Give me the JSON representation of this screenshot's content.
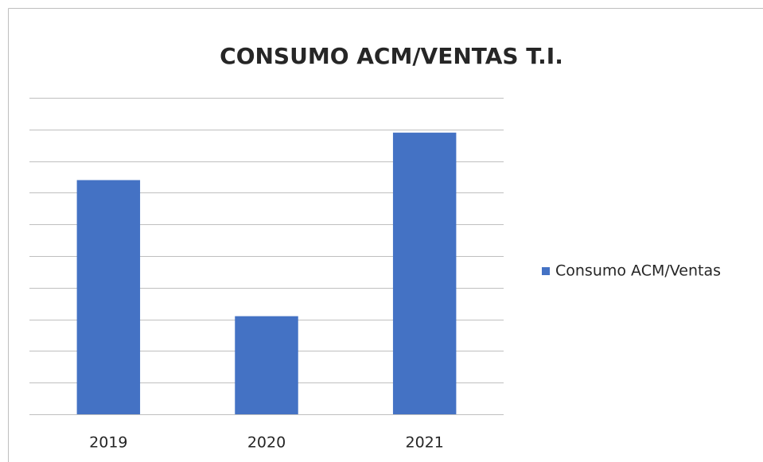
{
  "chart_data": {
    "type": "bar",
    "title": "CONSUMO ACM/VENTAS T.I.",
    "categories": [
      "2019",
      "2020",
      "2021"
    ],
    "series": [
      {
        "name": "Consumo ACM/Ventas",
        "color": "#4472c4",
        "values": [
          7.4,
          3.1,
          8.9
        ]
      }
    ],
    "ylim": [
      0,
      10
    ],
    "yticks": [
      0,
      1,
      2,
      3,
      4,
      5,
      6,
      7,
      8,
      9,
      10
    ],
    "grid": true,
    "legend": "right"
  }
}
